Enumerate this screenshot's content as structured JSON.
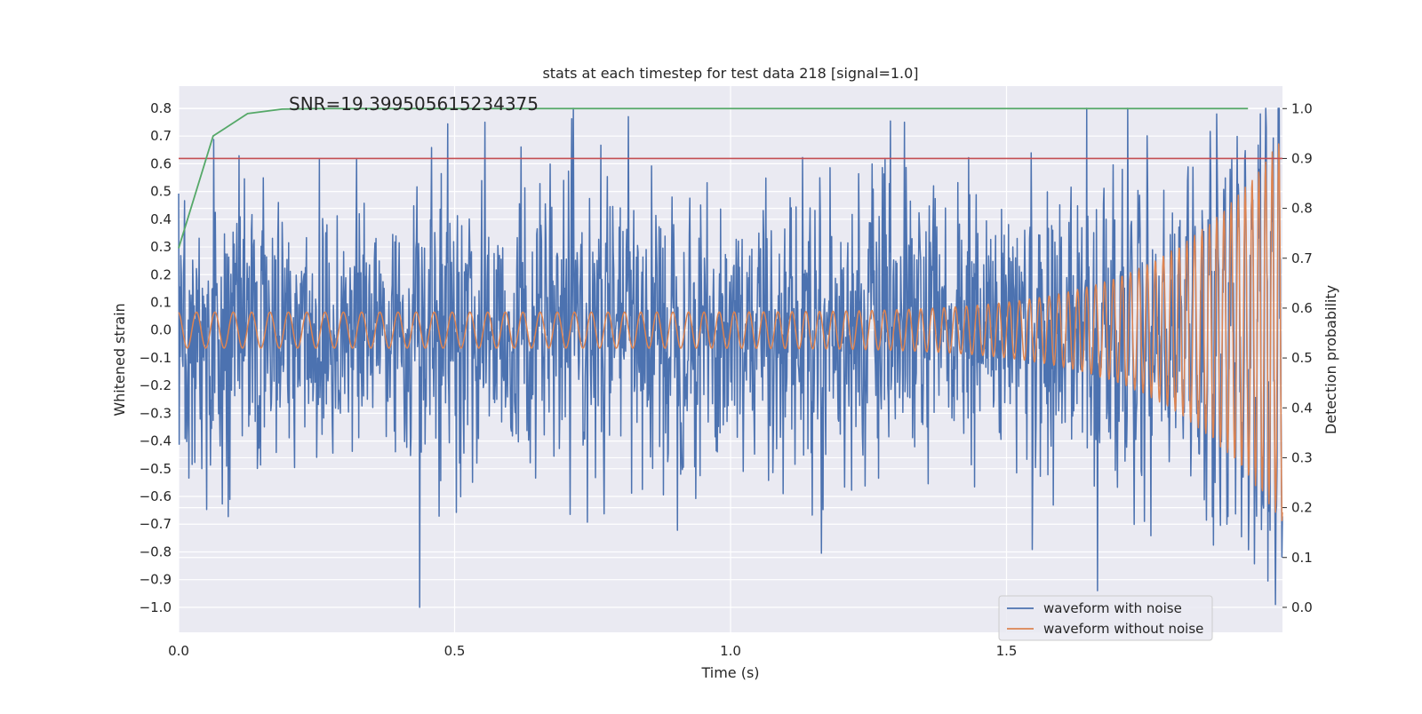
{
  "chart_data": {
    "type": "line",
    "title": "stats at each timestep for test data 218 [signal=1.0]",
    "xlabel": "Time (s)",
    "ylabel": "Whitened strain",
    "y2label": "Detection probability",
    "xlim": [
      0.0,
      2.0
    ],
    "ylim": [
      -1.09,
      0.88
    ],
    "y2lim": [
      -0.05,
      1.045
    ],
    "x_ticks": [
      0.0,
      0.5,
      1.0,
      1.5
    ],
    "x_tick_labels": [
      "0.0",
      "0.5",
      "1.0",
      "1.5"
    ],
    "y_ticks": [
      0.8,
      0.7,
      0.6,
      0.5,
      0.4,
      0.3,
      0.2,
      0.1,
      0.0,
      -0.1,
      -0.2,
      -0.3,
      -0.4,
      -0.5,
      -0.6,
      -0.7,
      -0.8,
      -0.9,
      -1.0
    ],
    "y_tick_labels": [
      "0.8",
      "0.7",
      "0.6",
      "0.5",
      "0.4",
      "0.3",
      "0.2",
      "0.1",
      "0.0",
      "−0.1",
      "−0.2",
      "−0.3",
      "−0.4",
      "−0.5",
      "−0.6",
      "−0.7",
      "−0.8",
      "−0.9",
      "−1.0"
    ],
    "y2_ticks": [
      1.0,
      0.9,
      0.8,
      0.7,
      0.6,
      0.5,
      0.4,
      0.3,
      0.2,
      0.1,
      0.0
    ],
    "y2_tick_labels": [
      "1.0",
      "0.9",
      "0.8",
      "0.7",
      "0.6",
      "0.5",
      "0.4",
      "0.3",
      "0.2",
      "0.1",
      "0.0"
    ],
    "grid": true,
    "legend_position": "lower-right",
    "annotation": "SNR=19.399505615234375",
    "threshold": {
      "axis": "y2",
      "value": 0.9,
      "color": "#c44e52"
    },
    "series": [
      {
        "name": "waveform with noise",
        "axis": "y",
        "color": "#4c72b0",
        "kind": "noisy-strain",
        "samples": 2048,
        "noise_std": 0.25,
        "extremes": [
          {
            "x": 0.437,
            "y": -1.0
          },
          {
            "x": 1.665,
            "y": -0.94
          },
          {
            "x": 1.315,
            "y": 0.75
          },
          {
            "x": 1.96,
            "y": 0.78
          },
          {
            "x": 0.815,
            "y": 0.77
          },
          {
            "x": 0.555,
            "y": 0.75
          }
        ]
      },
      {
        "name": "waveform without noise",
        "axis": "y",
        "color": "#dd8452",
        "kind": "chirp",
        "samples": 2048,
        "start_amplitude": 0.065,
        "end_amplitude": 0.7,
        "start_frequency_hz": 30,
        "end_frequency_hz": 85
      },
      {
        "name": "",
        "axis": "y2",
        "color": "#55a868",
        "x": [
          0.0,
          0.0625,
          0.125,
          0.1875,
          0.25,
          0.5,
          1.0,
          1.5,
          1.9375
        ],
        "values": [
          0.72,
          0.945,
          0.99,
          0.999,
          1.0,
          1.0,
          1.0,
          1.0,
          1.0
        ]
      }
    ]
  }
}
